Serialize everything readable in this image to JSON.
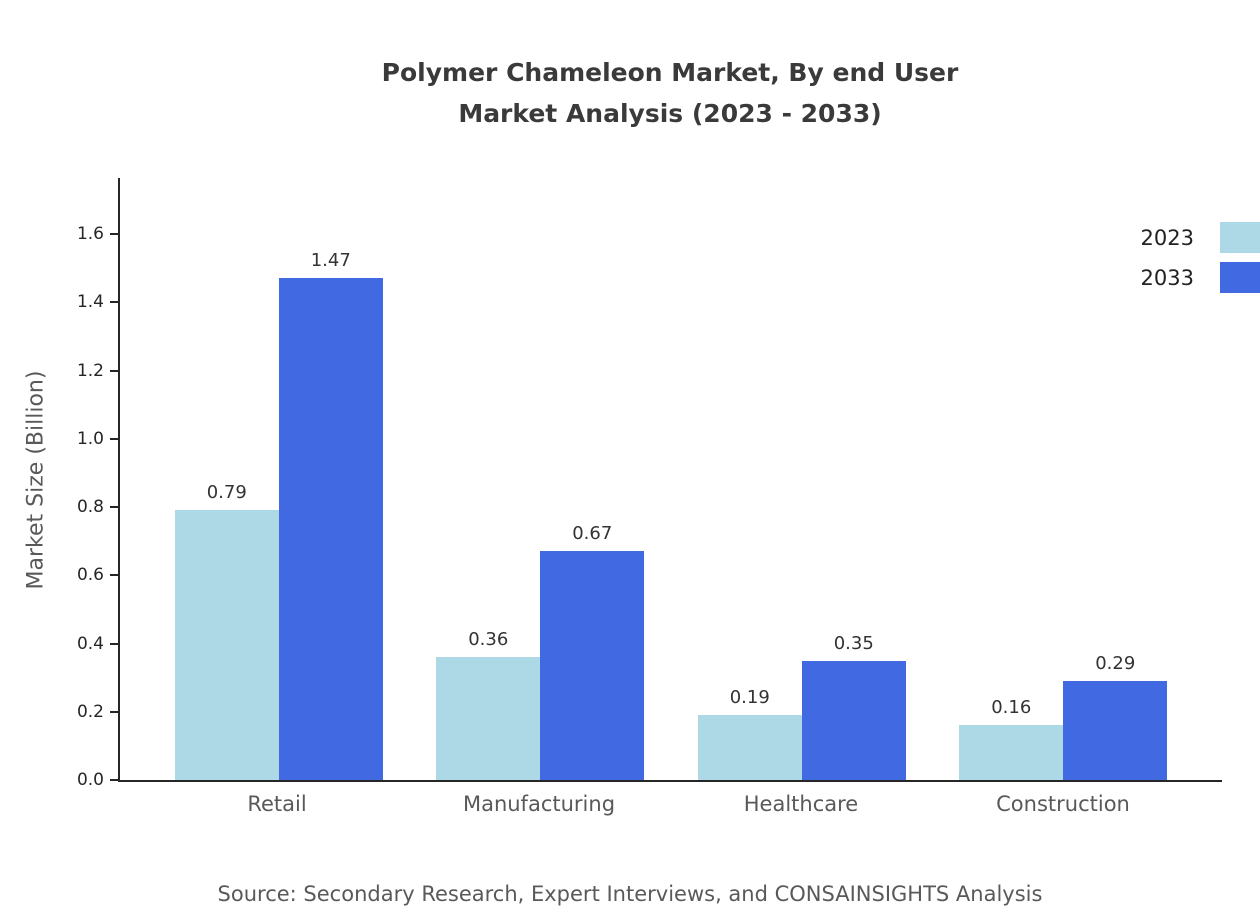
{
  "header": {
    "title": "Polymer Chameleon Market, By end User",
    "subtitle": "Market Analysis (2023 - 2033)"
  },
  "footer": {
    "source": "Source: Secondary Research, Expert Interviews, and CONSAINSIGHTS Analysis"
  },
  "chart_data": {
    "type": "bar",
    "title": "Polymer Chameleon Market, By end User Market Analysis (2023 - 2033)",
    "categories": [
      "Retail",
      "Manufacturing",
      "Healthcare",
      "Construction"
    ],
    "series": [
      {
        "name": "2023",
        "color": "#ADD8E6",
        "values": [
          0.79,
          0.36,
          0.19,
          0.16
        ]
      },
      {
        "name": "2033",
        "color": "#4169E1",
        "values": [
          1.47,
          0.67,
          0.35,
          0.29
        ]
      }
    ],
    "xlabel": "",
    "ylabel": "Market Size (Billion)",
    "ylim": [
      0,
      1.77
    ],
    "ytick_labels": [
      "0.0",
      "0.2",
      "0.4",
      "0.6",
      "0.8",
      "1.0",
      "1.2",
      "1.4",
      "1.6"
    ],
    "grid": false,
    "legend_position": "top-right",
    "value_labels": true
  }
}
